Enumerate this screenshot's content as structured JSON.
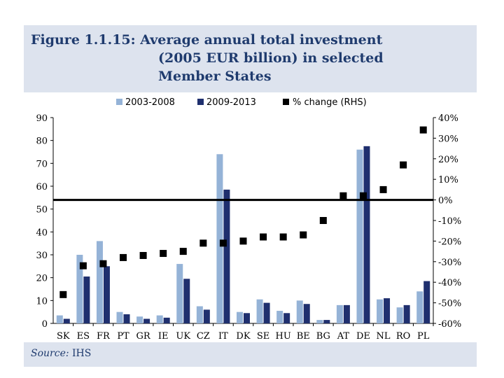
{
  "header": {
    "title_line1": "Figure 1.1.15: Average annual total investment",
    "title_line2": "(2005 EUR billion) in selected",
    "title_line3": "Member States"
  },
  "source": {
    "label": "Source:",
    "value": "IHS"
  },
  "colors": {
    "series1": "#95b3d7",
    "series2": "#1f2f6e",
    "marker": "#000000",
    "panel": "#dde3ee",
    "title": "#1f3b6e"
  },
  "chart_data": {
    "type": "bar",
    "categories": [
      "SK",
      "ES",
      "FR",
      "PT",
      "GR",
      "IE",
      "UK",
      "CZ",
      "IT",
      "DK",
      "SE",
      "HU",
      "BE",
      "BG",
      "AT",
      "DE",
      "NL",
      "RO",
      "PL"
    ],
    "series": [
      {
        "name": "2003-2008",
        "values": [
          3.5,
          30,
          36,
          5,
          3,
          3.5,
          26,
          7.5,
          74,
          5,
          10.5,
          5.5,
          10,
          1.5,
          8,
          76,
          10.5,
          7,
          14
        ]
      },
      {
        "name": "2009-2013",
        "values": [
          2,
          20.5,
          25,
          4,
          2,
          2.5,
          19.5,
          6,
          58.5,
          4.5,
          9,
          4.5,
          8.5,
          1.5,
          8,
          77.5,
          11,
          8,
          18.5
        ]
      },
      {
        "name": "% change (RHS)",
        "axis": "right",
        "marker": "square",
        "values": [
          -46,
          -32,
          -31,
          -28,
          -27,
          -26,
          -25,
          -21,
          -21,
          -20,
          -18,
          -18,
          -17,
          -10,
          2,
          2,
          5,
          17,
          34
        ]
      }
    ],
    "y_left": {
      "min": 0,
      "max": 90,
      "ticks": [
        "0",
        "10",
        "20",
        "30",
        "40",
        "50",
        "60",
        "70",
        "80",
        "90"
      ]
    },
    "y_right": {
      "min": -60,
      "max": 40,
      "ticks": [
        "-60%",
        "-50%",
        "-40%",
        "-30%",
        "-20%",
        "-10%",
        "0%",
        "10%",
        "20%",
        "30%",
        "40%"
      ]
    },
    "zero_line": "0%",
    "legend": [
      "2003-2008",
      "2009-2013",
      "% change (RHS)"
    ],
    "legend_position": "top"
  }
}
